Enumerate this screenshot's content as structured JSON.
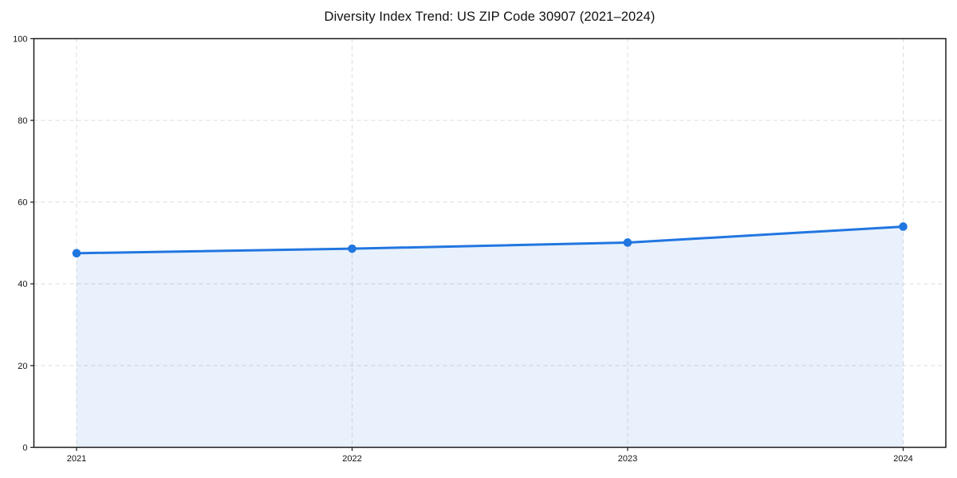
{
  "title": "Diversity Index Trend: US ZIP Code 30907 (2021–2024)",
  "chart_data": {
    "type": "area",
    "title": "Diversity Index Trend: US ZIP Code 30907 (2021–2024)",
    "x": [
      2021,
      2022,
      2023,
      2024
    ],
    "xticks": [
      "2021",
      "2022",
      "2023",
      "2024"
    ],
    "series": [
      {
        "name": "Diversity Index",
        "values": [
          47.5,
          48.6,
          50.1,
          54.0
        ]
      }
    ],
    "xlabel": "",
    "ylabel": "",
    "ylim": [
      0,
      100
    ],
    "yticks": [
      0,
      20,
      40,
      60,
      80,
      100
    ],
    "grid": true,
    "grid_style": "dashed",
    "legend_position": "none",
    "colors": {
      "line": "#2176e0",
      "marker": "#2176e0",
      "fill": "rgba(33,118,224,0.10)",
      "grid": "#dcdcdc",
      "spine": "#1a1a1a",
      "tick": "#1a1a1a",
      "text": "#111111",
      "background": "#ffffff"
    }
  }
}
